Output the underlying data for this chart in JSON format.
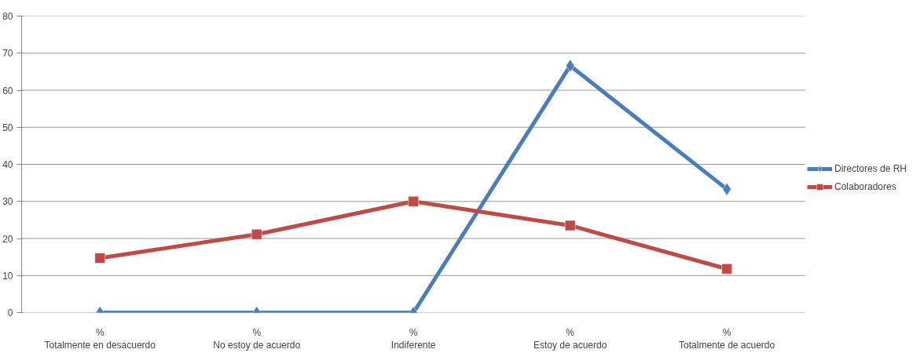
{
  "chart_data": {
    "type": "line",
    "categories": [
      "%\nTotalmente en desacuerdo",
      "%\nNo estoy de acuerdo",
      "%\nIndiferente",
      "%\nEstoy de acuerdo",
      "%\nTotalmente de acuerdo"
    ],
    "series": [
      {
        "name": "Directores de RH",
        "color": "#4a7ebb",
        "marker": "diamond",
        "values": [
          0,
          0,
          0,
          66.6,
          33.3
        ]
      },
      {
        "name": "Colaboradores",
        "color": "#be4b48",
        "marker": "square",
        "values": [
          14.7,
          21.1,
          30,
          23.5,
          11.8
        ]
      }
    ],
    "ylim": [
      0,
      80
    ],
    "yticks": [
      0,
      10,
      20,
      30,
      40,
      50,
      60,
      70,
      80
    ],
    "grid": "y",
    "legend": "right",
    "line_style": "solid"
  }
}
